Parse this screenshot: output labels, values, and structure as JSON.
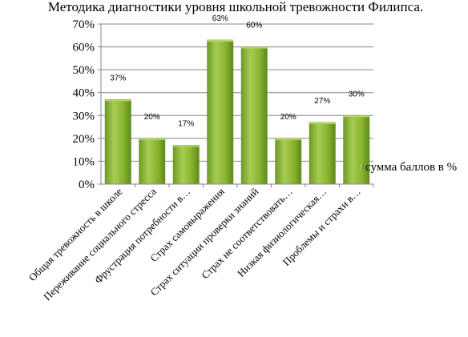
{
  "chart_data": {
    "type": "bar",
    "title": "Методика диагностики уровня школьной тревожности Филипса.",
    "categories": [
      "Общая тревожность в школе",
      "Переживание социального стресса",
      "Фрустрация потребности в…",
      "Страх самовыражения",
      "Страх ситуации проверки знаний",
      "Страх не соответствовать…",
      "Низкая физиологическая…",
      "Проблемы и страхи в…"
    ],
    "series": [
      {
        "name": "сумма баллов в %",
        "values": [
          37,
          20,
          17,
          63,
          60,
          20,
          27,
          30
        ],
        "labels": [
          "37%",
          "20%",
          "17%",
          "63%",
          "60%",
          "20%",
          "27%",
          "30%"
        ]
      }
    ],
    "ylim": [
      0,
      70
    ],
    "yticks": [
      "0%",
      "10%",
      "20%",
      "30%",
      "40%",
      "50%",
      "60%",
      "70%"
    ],
    "ytick_values": [
      0,
      10,
      20,
      30,
      40,
      50,
      60,
      70
    ],
    "grid": true,
    "legend_position": "right",
    "colors": {
      "bar": "#8ab52e",
      "bar_dark": "#5d8a1a",
      "bar_light": "#b5d66a",
      "grid": "#868686"
    }
  }
}
